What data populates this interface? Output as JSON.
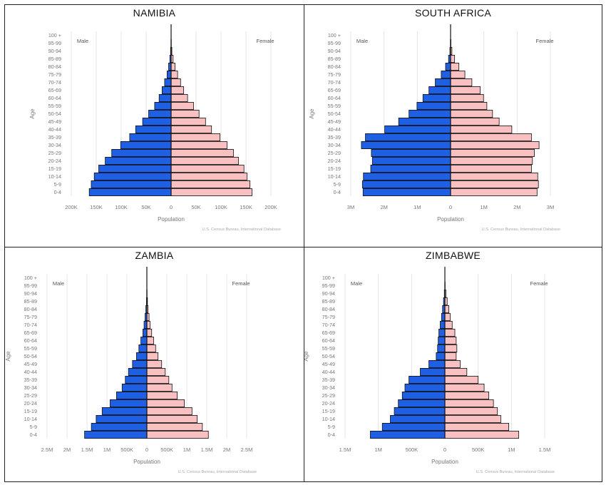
{
  "chart_data": [
    {
      "type": "bar",
      "title": "NAMIBIA",
      "age_groups": [
        "0-4",
        "5-9",
        "10-14",
        "15-19",
        "20-24",
        "25-29",
        "30-34",
        "35-39",
        "40-44",
        "45-49",
        "50-54",
        "55-59",
        "60-64",
        "65-69",
        "70-74",
        "75-79",
        "80-84",
        "85-89",
        "90-94",
        "95-99",
        "100 +"
      ],
      "series": [
        {
          "name": "Male",
          "values": [
            164000,
            160000,
            154000,
            145000,
            132000,
            119000,
            101000,
            83000,
            71000,
            57000,
            45000,
            33000,
            24000,
            18000,
            13000,
            8000,
            5000,
            2500,
            1000,
            300,
            100
          ]
        },
        {
          "name": "Female",
          "values": [
            162000,
            158000,
            152000,
            146000,
            135000,
            125000,
            112000,
            98000,
            81000,
            69000,
            56000,
            45000,
            33000,
            25000,
            19000,
            13000,
            8000,
            4000,
            1500,
            400,
            100
          ]
        }
      ],
      "xlim": [
        -200000,
        200000
      ],
      "xticks": [
        -200000,
        -150000,
        -100000,
        -50000,
        0,
        50000,
        100000,
        150000,
        200000
      ],
      "xtick_labels": [
        "200K",
        "150K",
        "100K",
        "50K",
        "0",
        "50K",
        "100K",
        "150K",
        "200K"
      ],
      "xlabel": "Population",
      "ylabel": "Age",
      "left_label": "Male",
      "right_label": "Female",
      "source": "U.S. Census Bureau, International Database"
    },
    {
      "type": "bar",
      "title": "SOUTH AFRICA",
      "age_groups": [
        "0-4",
        "5-9",
        "10-14",
        "15-19",
        "20-24",
        "25-29",
        "30-34",
        "35-39",
        "40-44",
        "45-49",
        "50-54",
        "55-59",
        "60-64",
        "65-69",
        "70-74",
        "75-79",
        "80-84",
        "85-89",
        "90-94",
        "95-99",
        "100 +"
      ],
      "series": [
        {
          "name": "Male",
          "values": [
            2630000,
            2650000,
            2620000,
            2400000,
            2350000,
            2380000,
            2680000,
            2560000,
            1980000,
            1560000,
            1250000,
            1010000,
            830000,
            650000,
            460000,
            280000,
            150000,
            60000,
            20000,
            5000,
            1000
          ]
        },
        {
          "name": "Female",
          "values": [
            2600000,
            2640000,
            2620000,
            2430000,
            2460000,
            2520000,
            2660000,
            2430000,
            1840000,
            1460000,
            1260000,
            1090000,
            990000,
            890000,
            640000,
            430000,
            250000,
            120000,
            40000,
            10000,
            2000
          ]
        }
      ],
      "xlim": [
        -3000000,
        3000000
      ],
      "xticks": [
        -3000000,
        -2000000,
        -1000000,
        0,
        1000000,
        2000000,
        3000000
      ],
      "xtick_labels": [
        "3M",
        "2M",
        "1M",
        "0",
        "1M",
        "2M",
        "3M"
      ],
      "xlabel": "Population",
      "ylabel": "Age",
      "left_label": "Male",
      "right_label": "Female",
      "source": "U.S. Census Bureau, International Database"
    },
    {
      "type": "bar",
      "title": "ZAMBIA",
      "age_groups": [
        "0-4",
        "5-9",
        "10-14",
        "15-19",
        "20-24",
        "25-29",
        "30-34",
        "35-39",
        "40-44",
        "45-49",
        "50-54",
        "55-59",
        "60-64",
        "65-69",
        "70-74",
        "75-79",
        "80-84",
        "85-89",
        "90-94",
        "95-99",
        "100 +"
      ],
      "series": [
        {
          "name": "Male",
          "values": [
            1560000,
            1390000,
            1270000,
            1120000,
            920000,
            760000,
            620000,
            540000,
            460000,
            360000,
            260000,
            200000,
            150000,
            100000,
            70000,
            45000,
            25000,
            10000,
            4000,
            1000,
            200
          ]
        },
        {
          "name": "Female",
          "values": [
            1540000,
            1390000,
            1260000,
            1130000,
            940000,
            760000,
            630000,
            550000,
            460000,
            370000,
            280000,
            220000,
            170000,
            120000,
            80000,
            55000,
            30000,
            15000,
            5000,
            1500,
            300
          ]
        }
      ],
      "xlim": [
        -2500000,
        2500000
      ],
      "xticks": [
        -2500000,
        -2000000,
        -1500000,
        -1000000,
        -500000,
        0,
        500000,
        1000000,
        1500000,
        2000000,
        2500000
      ],
      "xtick_labels": [
        "2.5M",
        "2M",
        "1.5M",
        "1M",
        "500K",
        "0",
        "500K",
        "1M",
        "1.5M",
        "2M",
        "2.5M"
      ],
      "xlabel": "Population",
      "ylabel": "Age",
      "left_label": "Male",
      "right_label": "Female",
      "source": "U.S. Census Bureau, International Database"
    },
    {
      "type": "bar",
      "title": "ZIMBABWE",
      "age_groups": [
        "0-4",
        "5-9",
        "10-14",
        "15-19",
        "20-24",
        "25-29",
        "30-34",
        "35-39",
        "40-44",
        "45-49",
        "50-54",
        "55-59",
        "60-64",
        "65-69",
        "70-74",
        "75-79",
        "80-84",
        "85-89",
        "90-94",
        "95-99",
        "100 +"
      ],
      "series": [
        {
          "name": "Male",
          "values": [
            1120000,
            940000,
            820000,
            760000,
            700000,
            640000,
            600000,
            540000,
            370000,
            240000,
            130000,
            110000,
            100000,
            90000,
            70000,
            50000,
            35000,
            20000,
            8000,
            2000,
            500
          ]
        },
        {
          "name": "Female",
          "values": [
            1110000,
            960000,
            840000,
            790000,
            730000,
            660000,
            590000,
            500000,
            330000,
            230000,
            170000,
            180000,
            170000,
            150000,
            110000,
            80000,
            60000,
            35000,
            15000,
            4000,
            800
          ]
        }
      ],
      "xlim": [
        -1500000,
        1500000
      ],
      "xticks": [
        -1500000,
        -1000000,
        -500000,
        0,
        500000,
        1000000,
        1500000
      ],
      "xtick_labels": [
        "1.5M",
        "1M",
        "500K",
        "0",
        "500K",
        "1M",
        "1.5M"
      ],
      "xlabel": "Population",
      "ylabel": "Age",
      "left_label": "Male",
      "right_label": "Female",
      "source": "U.S. Census Bureau, International Database"
    }
  ],
  "colors": {
    "male": "#1f5fe3",
    "female": "#f8c0c0",
    "bar_outline": "#111111",
    "axis_text": "#777777",
    "gridline": "#e4e4e4",
    "center_line": "#111111"
  }
}
